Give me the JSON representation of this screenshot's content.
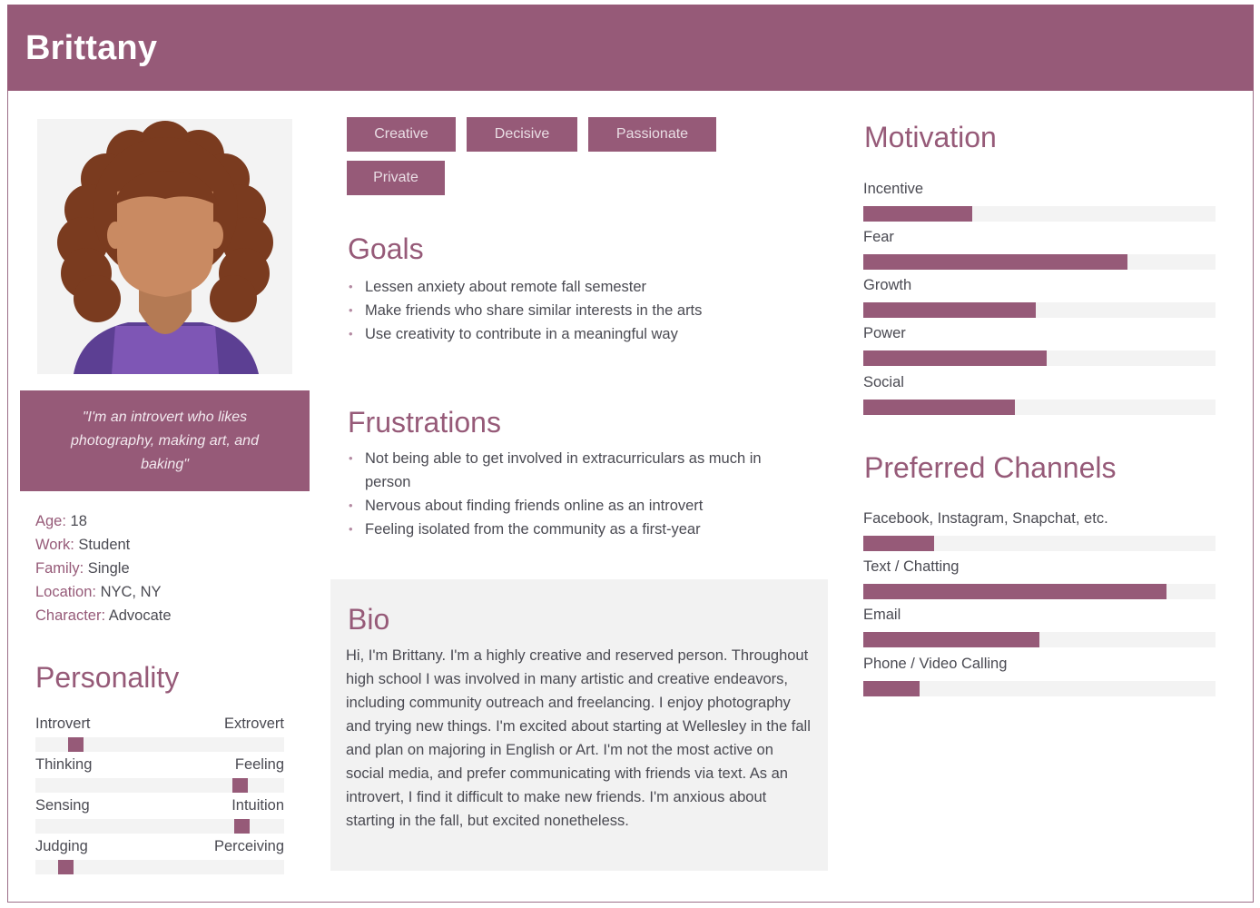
{
  "persona": {
    "name": "Brittany"
  },
  "quote": "\"I'm an introvert who likes photography, making art, and baking\"",
  "facts": [
    {
      "key": "Age:",
      "value": "18"
    },
    {
      "key": "Work:",
      "value": "Student"
    },
    {
      "key": "Family:",
      "value": "Single"
    },
    {
      "key": "Location:",
      "value": "NYC, NY"
    },
    {
      "key": "Character:",
      "value": "Advocate"
    }
  ],
  "personality": {
    "title": "Personality",
    "traits": [
      {
        "left": "Introvert",
        "right": "Extrovert",
        "level": 0.16
      },
      {
        "left": "Thinking",
        "right": "Feeling",
        "level": 0.82
      },
      {
        "left": "Sensing",
        "right": "Intuition",
        "level": 0.83
      },
      {
        "left": "Judging",
        "right": "Perceiving",
        "level": 0.12
      }
    ]
  },
  "tags": [
    "Creative",
    "Decisive",
    "Passionate",
    "Private"
  ],
  "goals": {
    "title": "Goals",
    "items": [
      "Lessen anxiety about remote fall semester",
      "Make friends who share similar interests in the arts",
      "Use creativity to contribute in a meaningful way"
    ]
  },
  "frustrations": {
    "title": "Frustrations",
    "items": [
      "Not being able to get involved in extracurriculars as much in person",
      "Nervous about finding friends online as an introvert",
      "Feeling isolated from the community as a first-year"
    ]
  },
  "bio": {
    "title": "Bio",
    "text": "Hi, I'm Brittany. I'm a highly creative and reserved person. Throughout high school I was involved in many artistic and creative endeavors, including community outreach and freelancing. I enjoy photography and trying new things. I'm excited about starting at Wellesley in the fall and plan on majoring in English or Art. I'm not the most active on social media, and prefer communicating with friends via text. As an introvert, I find it difficult to make new friends. I'm anxious about starting in the fall, but excited nonetheless."
  },
  "motivation": {
    "title": "Motivation",
    "items": [
      {
        "label": "Incentive",
        "level": 0.31
      },
      {
        "label": "Fear",
        "level": 0.75
      },
      {
        "label": "Growth",
        "level": 0.49
      },
      {
        "label": "Power",
        "level": 0.52
      },
      {
        "label": "Social",
        "level": 0.43
      }
    ]
  },
  "channels": {
    "title": "Preferred Channels",
    "items": [
      {
        "label": "Facebook, Instagram, Snapchat, etc.",
        "level": 0.2
      },
      {
        "label": "Text / Chatting",
        "level": 0.86
      },
      {
        "label": "Email",
        "level": 0.5
      },
      {
        "label": "Phone / Video Calling",
        "level": 0.16
      }
    ]
  },
  "colors": {
    "accent": "#965a78",
    "track": "#f3f3f3",
    "bio_bg": "#f2f2f2",
    "hair": "#7a3b1f",
    "skin": "#c98a62",
    "shirt": "#7e56b5"
  }
}
